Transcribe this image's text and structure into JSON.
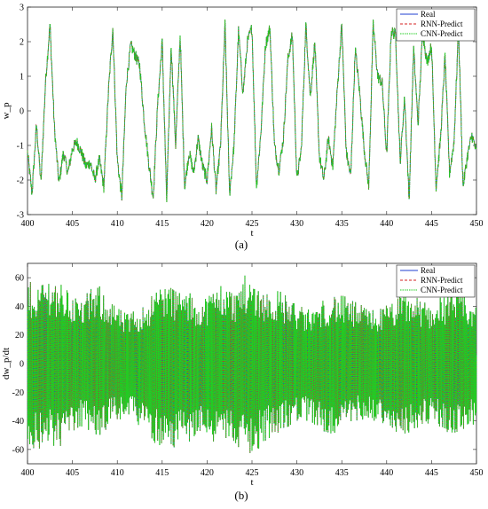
{
  "chart_data": [
    {
      "type": "line",
      "title": "",
      "xlabel": "t",
      "ylabel": "w_p",
      "xlim": [
        400,
        450
      ],
      "ylim": [
        -3,
        3
      ],
      "xticks": [
        "400",
        "405",
        "410",
        "415",
        "420",
        "425",
        "430",
        "435",
        "440",
        "445",
        "450"
      ],
      "yticks": [
        "3",
        "2",
        "1",
        "0",
        "-1",
        "-2",
        "-3"
      ],
      "caption": "(a)",
      "legend": {
        "placement": "top-right",
        "entries": [
          "Real",
          "RNN-Predict",
          "CNN-Predict"
        ]
      },
      "series": [
        {
          "name": "Real",
          "color": "#1f3fd1",
          "style": "solid"
        },
        {
          "name": "RNN-Predict",
          "color": "#d62020",
          "style": "dashed"
        },
        {
          "name": "CNN-Predict",
          "color": "#22cc22",
          "style": "dotted"
        }
      ],
      "x": [
        400,
        400.5,
        401,
        401.5,
        402,
        402.5,
        403,
        403.5,
        404,
        404.5,
        405,
        405.5,
        406,
        406.5,
        407,
        407.5,
        408,
        408.5,
        409,
        409.5,
        410,
        410.5,
        411,
        411.5,
        412,
        412.5,
        413,
        413.5,
        414,
        414.5,
        415,
        415.5,
        416,
        416.5,
        417,
        417.5,
        418,
        418.5,
        419,
        419.5,
        420,
        420.5,
        421,
        421.5,
        422,
        422.5,
        423,
        423.5,
        424,
        424.5,
        425,
        425.5,
        426,
        426.5,
        427,
        427.5,
        428,
        428.5,
        429,
        429.5,
        430,
        430.5,
        431,
        431.5,
        432,
        432.5,
        433,
        433.5,
        434,
        434.5,
        435,
        435.5,
        436,
        436.5,
        437,
        437.5,
        438,
        438.5,
        439,
        439.5,
        440,
        440.5,
        441,
        441.5,
        442,
        442.5,
        443,
        443.5,
        444,
        444.5,
        445,
        445.5,
        446,
        446.5,
        447,
        447.5,
        448,
        448.5,
        449,
        449.5,
        450
      ],
      "y": [
        -1.2,
        -2.4,
        -0.4,
        -2.1,
        0.8,
        2.5,
        -0.5,
        -2.1,
        -1.2,
        -1.8,
        -1.1,
        -0.9,
        -1.2,
        -1.6,
        -1.5,
        -2.0,
        -1.4,
        -2.2,
        0.5,
        2.4,
        -1.4,
        -2.5,
        0.8,
        1.9,
        1.6,
        1.3,
        -0.3,
        -1.5,
        -2.5,
        0.2,
        2.0,
        -2.6,
        1.9,
        -1.0,
        2.2,
        -2.2,
        -1.2,
        -1.8,
        -0.8,
        -1.6,
        -2.0,
        -0.5,
        -2.3,
        -1.0,
        2.5,
        -2.4,
        -1.0,
        2.3,
        0.5,
        2.0,
        2.4,
        -2.2,
        -0.6,
        1.9,
        2.4,
        -1.0,
        -1.7,
        -0.8,
        1.5,
        2.2,
        -2.0,
        -1.1,
        2.5,
        0.4,
        2.0,
        -1.3,
        -2.0,
        -0.8,
        -1.6,
        0.6,
        2.5,
        -1.2,
        -1.9,
        1.8,
        0.5,
        -1.1,
        -2.2,
        2.5,
        1.0,
        0.8,
        -1.3,
        2.3,
        2.2,
        -1.5,
        0.4,
        -2.6,
        1.8,
        -0.4,
        2.3,
        1.4,
        1.9,
        -2.2,
        -0.8,
        1.6,
        -1.8,
        -0.9,
        2.4,
        -2.2,
        -1.3,
        -0.7,
        -1.2
      ]
    },
    {
      "type": "line",
      "title": "",
      "xlabel": "t",
      "ylabel": "dw_p/dt",
      "xlim": [
        400,
        450
      ],
      "ylim": [
        -70,
        70
      ],
      "xticks": [
        "400",
        "405",
        "410",
        "415",
        "420",
        "425",
        "430",
        "435",
        "440",
        "445",
        "450"
      ],
      "yticks": [
        "60",
        "40",
        "20",
        "0",
        "-20",
        "-40",
        "-60"
      ],
      "caption": "(b)",
      "legend": {
        "placement": "top-right",
        "entries": [
          "Real",
          "RNN-Predict",
          "CNN-Predict"
        ]
      },
      "series": [
        {
          "name": "Real",
          "color": "#1f3fd1",
          "style": "solid"
        },
        {
          "name": "RNN-Predict",
          "color": "#d62020",
          "style": "dashed"
        },
        {
          "name": "CNN-Predict",
          "color": "#22cc22",
          "style": "dotted"
        }
      ],
      "x": [
        400,
        401,
        402,
        403,
        404,
        405,
        406,
        407,
        408,
        409,
        410,
        411,
        412,
        413,
        414,
        415,
        416,
        417,
        418,
        419,
        420,
        421,
        422,
        423,
        424,
        425,
        426,
        427,
        428,
        429,
        430,
        431,
        432,
        433,
        434,
        435,
        436,
        437,
        438,
        439,
        440,
        441,
        442,
        443,
        444,
        445,
        446,
        447,
        448,
        449,
        450
      ],
      "envelope_upper": [
        58,
        55,
        62,
        60,
        55,
        50,
        45,
        52,
        55,
        48,
        40,
        35,
        38,
        42,
        50,
        58,
        55,
        52,
        50,
        45,
        48,
        55,
        58,
        50,
        62,
        60,
        55,
        50,
        52,
        48,
        42,
        38,
        40,
        45,
        50,
        48,
        45,
        42,
        40,
        38,
        42,
        45,
        50,
        48,
        45,
        42,
        48,
        50,
        55,
        45,
        40
      ],
      "envelope_lower": [
        -58,
        -62,
        -55,
        -60,
        -58,
        -50,
        -45,
        -48,
        -52,
        -45,
        -40,
        -38,
        -42,
        -45,
        -55,
        -60,
        -62,
        -58,
        -55,
        -50,
        -52,
        -60,
        -58,
        -55,
        -62,
        -65,
        -58,
        -52,
        -50,
        -45,
        -42,
        -40,
        -45,
        -48,
        -50,
        -45,
        -42,
        -40,
        -38,
        -42,
        -45,
        -48,
        -50,
        -48,
        -45,
        -42,
        -45,
        -50,
        -48,
        -45,
        -42
      ]
    }
  ]
}
